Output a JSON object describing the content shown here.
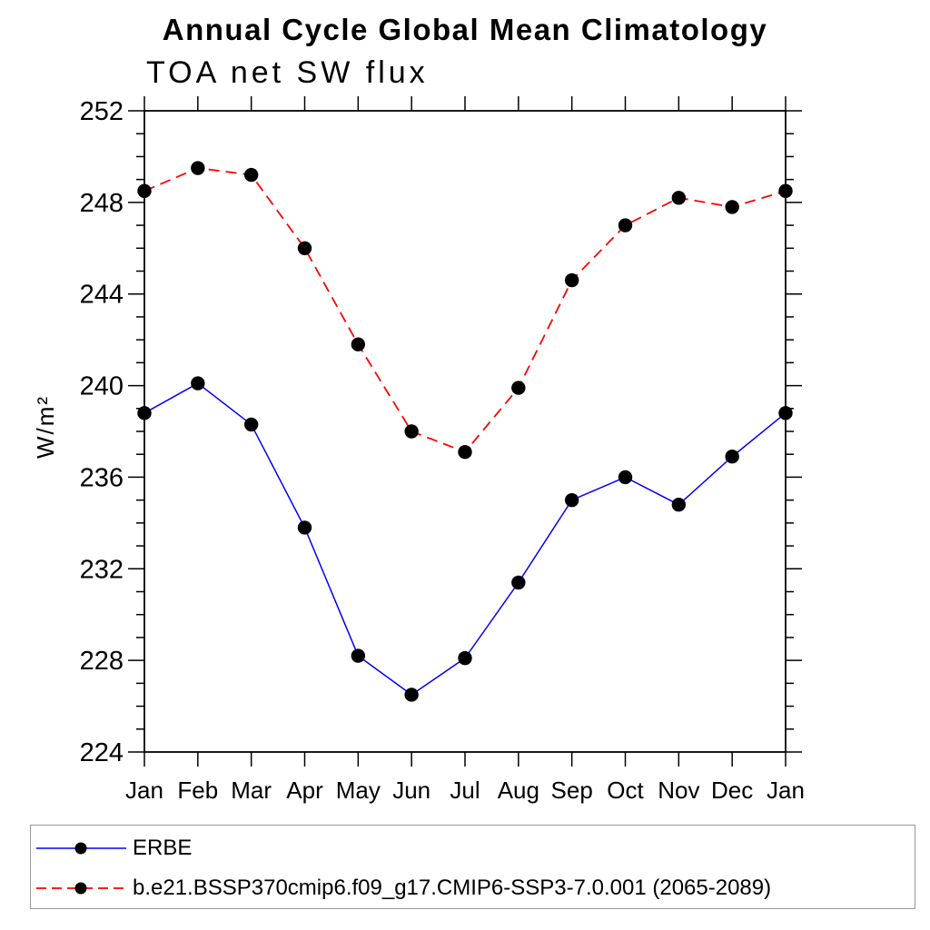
{
  "chart": {
    "title": "Annual Cycle Global Mean Climatology",
    "subtitle": "TOA net SW flux",
    "ylabel": "W/m²"
  },
  "colors": {
    "axis": "#000000",
    "background": "#ffffff",
    "legend_border": "#999999",
    "erbe_line": "#0000ff",
    "model_line": "#ff0000",
    "marker": "#000000"
  },
  "chart_data": {
    "type": "line",
    "title": "Annual Cycle Global Mean Climatology",
    "subtitle": "TOA net SW flux",
    "xlabel": "",
    "ylabel": "W/m²",
    "categories": [
      "Jan",
      "Feb",
      "Mar",
      "Apr",
      "May",
      "Jun",
      "Jul",
      "Aug",
      "Sep",
      "Oct",
      "Nov",
      "Dec",
      "Jan"
    ],
    "ylim": [
      224,
      252
    ],
    "y_major_step": 4,
    "y_minor_step": 1,
    "y_tick_labels": [
      "224",
      "228",
      "232",
      "236",
      "240",
      "244",
      "248",
      "252"
    ],
    "grid": false,
    "legend_position": "bottom",
    "series": [
      {
        "name": "ERBE",
        "color": "#0000ff",
        "style": "solid",
        "marker": "circle",
        "marker_color": "#000000",
        "values": [
          238.8,
          240.1,
          238.3,
          233.8,
          228.2,
          226.5,
          228.1,
          231.4,
          235.0,
          236.0,
          234.8,
          236.9,
          238.8
        ]
      },
      {
        "name": "b.e21.BSSP370cmip6.f09_g17.CMIP6-SSP3-7.0.001 (2065-2089)",
        "color": "#ff0000",
        "style": "dashed",
        "marker": "circle",
        "marker_color": "#000000",
        "values": [
          248.5,
          249.5,
          249.2,
          246.0,
          241.8,
          238.0,
          237.1,
          239.9,
          244.6,
          247.0,
          248.2,
          247.8,
          248.5
        ]
      }
    ]
  }
}
